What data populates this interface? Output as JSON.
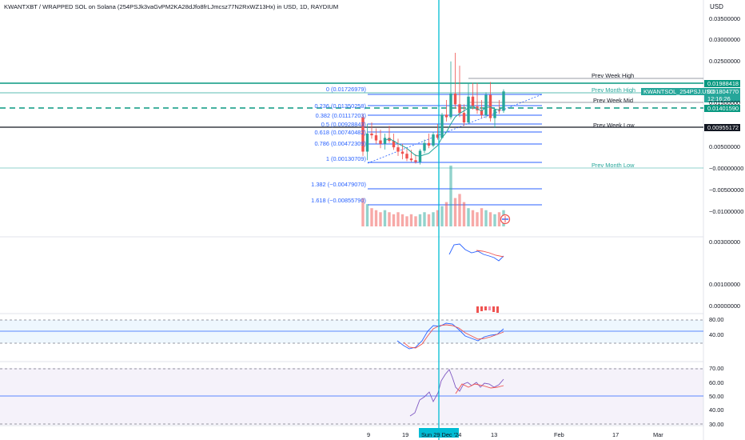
{
  "header": {
    "title": "KWANTXBT / WRAPPED SOL on Solana (254PSJk3vaGvPM2KA28dJfo8frLJmcsz77N2RxWZ13Hx) in USD, 1D, RAYDIUM",
    "currency": "USD"
  },
  "price_axis": {
    "labels": [
      "0.03500000",
      "0.03000000",
      "0.02500000",
      "0.01500000",
      "0.00500000",
      "−0.00000000",
      "−0.00500000",
      "−0.01000000"
    ],
    "badges": {
      "high": "0.01988418",
      "symbol_name": "KWANTSOL_254PSJ.USD",
      "symbol_price": "0.01804770",
      "countdown": "12:16:26",
      "mid": "0.01401590",
      "low": "0.00955172"
    }
  },
  "fib_levels": [
    {
      "ratio": "0",
      "label": "0 (0.01726979)"
    },
    {
      "ratio": "0.236",
      "label": "0.236 (0.01350258)"
    },
    {
      "ratio": "0.382",
      "label": "0.382 (0.01117203)"
    },
    {
      "ratio": "0.5",
      "label": "0.5 (0.00928843)"
    },
    {
      "ratio": "0.618",
      "label": "0.618 (0.00740482)"
    },
    {
      "ratio": "0.786",
      "label": "0.786 (0.00472309)"
    },
    {
      "ratio": "1",
      "label": "1 (0.00130709)"
    },
    {
      "ratio": "1.382",
      "label": "1.382 (−0.00479070)"
    },
    {
      "ratio": "1.618",
      "label": "1.618 (−0.00855790)"
    }
  ],
  "week_labels": {
    "prev_week_high": "Prev Week High",
    "prev_month_high": "Prev Month High",
    "prev_week_mid": "Prev Week Mid",
    "prev_week_low": "Prev Week Low",
    "prev_month_low": "Prev Month Low"
  },
  "macd_axis": {
    "labels": [
      "0.00300000",
      "0.00100000",
      "0.00000000"
    ]
  },
  "stoch_axis": {
    "labels": [
      "80.00",
      "40.00"
    ]
  },
  "rsi_axis": {
    "labels": [
      "70.00",
      "60.00",
      "50.00",
      "40.00",
      "30.00"
    ]
  },
  "time_axis": {
    "labels": [
      "9",
      "19",
      "13",
      "Feb",
      "17",
      "Mar"
    ],
    "crosshair_label": "Sun 29 Dec '24"
  },
  "colors": {
    "up": "#26a69a",
    "down": "#ef5350",
    "fib": "#2962ff",
    "crosshair": "#00bcd4",
    "prev_week": "#131722",
    "prev_month": "#26a69a"
  },
  "chart_data": {
    "type": "candlestick",
    "interval": "1D",
    "candles": [
      {
        "o": 0.012,
        "h": 0.0128,
        "l": 0.003,
        "c": 0.004
      },
      {
        "o": 0.004,
        "h": 0.0105,
        "l": 0.002,
        "c": 0.0082
      },
      {
        "o": 0.0082,
        "h": 0.0108,
        "l": 0.007,
        "c": 0.0078
      },
      {
        "o": 0.0078,
        "h": 0.0094,
        "l": 0.0058,
        "c": 0.0066
      },
      {
        "o": 0.0066,
        "h": 0.0091,
        "l": 0.0048,
        "c": 0.0058
      },
      {
        "o": 0.0058,
        "h": 0.0082,
        "l": 0.0045,
        "c": 0.0072
      },
      {
        "o": 0.0072,
        "h": 0.01,
        "l": 0.006,
        "c": 0.0065
      },
      {
        "o": 0.0065,
        "h": 0.0082,
        "l": 0.0044,
        "c": 0.005
      },
      {
        "o": 0.005,
        "h": 0.007,
        "l": 0.003,
        "c": 0.004
      },
      {
        "o": 0.004,
        "h": 0.0058,
        "l": 0.0022,
        "c": 0.0035
      },
      {
        "o": 0.0035,
        "h": 0.0046,
        "l": 0.0018,
        "c": 0.0024
      },
      {
        "o": 0.0024,
        "h": 0.0044,
        "l": 0.0016,
        "c": 0.002
      },
      {
        "o": 0.002,
        "h": 0.0034,
        "l": 0.0012,
        "c": 0.0016
      },
      {
        "o": 0.0016,
        "h": 0.0046,
        "l": 0.001,
        "c": 0.0042
      },
      {
        "o": 0.0042,
        "h": 0.0068,
        "l": 0.0036,
        "c": 0.006
      },
      {
        "o": 0.006,
        "h": 0.0082,
        "l": 0.0048,
        "c": 0.0054
      },
      {
        "o": 0.0054,
        "h": 0.0086,
        "l": 0.005,
        "c": 0.008
      },
      {
        "o": 0.008,
        "h": 0.0104,
        "l": 0.0068,
        "c": 0.0072
      },
      {
        "o": 0.0072,
        "h": 0.013,
        "l": 0.007,
        "c": 0.0126
      },
      {
        "o": 0.0126,
        "h": 0.016,
        "l": 0.011,
        "c": 0.012
      },
      {
        "o": 0.012,
        "h": 0.025,
        "l": 0.0115,
        "c": 0.0175
      },
      {
        "o": 0.0175,
        "h": 0.027,
        "l": 0.014,
        "c": 0.015
      },
      {
        "o": 0.015,
        "h": 0.024,
        "l": 0.012,
        "c": 0.013
      },
      {
        "o": 0.013,
        "h": 0.015,
        "l": 0.01,
        "c": 0.0108
      },
      {
        "o": 0.0108,
        "h": 0.02,
        "l": 0.0104,
        "c": 0.0168
      },
      {
        "o": 0.0168,
        "h": 0.02,
        "l": 0.0138,
        "c": 0.0145
      },
      {
        "o": 0.0145,
        "h": 0.02,
        "l": 0.0128,
        "c": 0.0136
      },
      {
        "o": 0.0136,
        "h": 0.016,
        "l": 0.0118,
        "c": 0.0125
      },
      {
        "o": 0.0125,
        "h": 0.0178,
        "l": 0.0118,
        "c": 0.0172
      },
      {
        "o": 0.0172,
        "h": 0.0202,
        "l": 0.011,
        "c": 0.0118
      },
      {
        "o": 0.0118,
        "h": 0.014,
        "l": 0.0095,
        "c": 0.0138
      },
      {
        "o": 0.0138,
        "h": 0.016,
        "l": 0.0128,
        "c": 0.0135
      },
      {
        "o": 0.0135,
        "h": 0.0185,
        "l": 0.013,
        "c": 0.018
      }
    ],
    "volume": [
      14,
      11,
      9,
      8,
      7,
      8,
      7,
      6,
      7,
      6,
      5,
      6,
      5,
      6,
      7,
      6,
      7,
      8,
      10,
      12,
      30,
      14,
      16,
      12,
      9,
      8,
      7,
      9,
      8,
      7,
      6,
      7,
      8
    ],
    "horizontal_levels": {
      "prev_week_high": 0.01988418,
      "prev_month_high": 0.0185,
      "prev_week_mid": 0.0140159,
      "prev_week_low": 0.00955172
    }
  }
}
